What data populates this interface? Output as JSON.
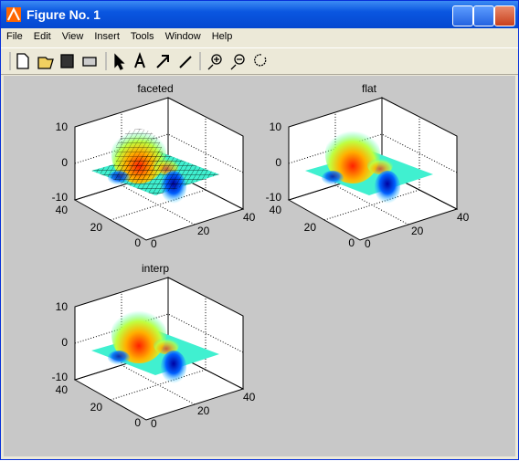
{
  "window": {
    "title": "Figure No. 1",
    "menu": [
      "File",
      "Edit",
      "View",
      "Insert",
      "Tools",
      "Window",
      "Help"
    ]
  },
  "plots": [
    {
      "title": "faceted",
      "zticks": [
        10,
        0,
        -10
      ],
      "yticks": [
        40,
        20,
        0
      ],
      "xticks": [
        0,
        20,
        40
      ]
    },
    {
      "title": "flat",
      "zticks": [
        10,
        0,
        -10
      ],
      "yticks": [
        40,
        20,
        0
      ],
      "xticks": [
        0,
        20,
        40
      ]
    },
    {
      "title": "interp",
      "zticks": [
        10,
        0,
        -10
      ],
      "yticks": [
        40,
        20,
        0
      ],
      "xticks": [
        0,
        20,
        40
      ]
    }
  ]
}
